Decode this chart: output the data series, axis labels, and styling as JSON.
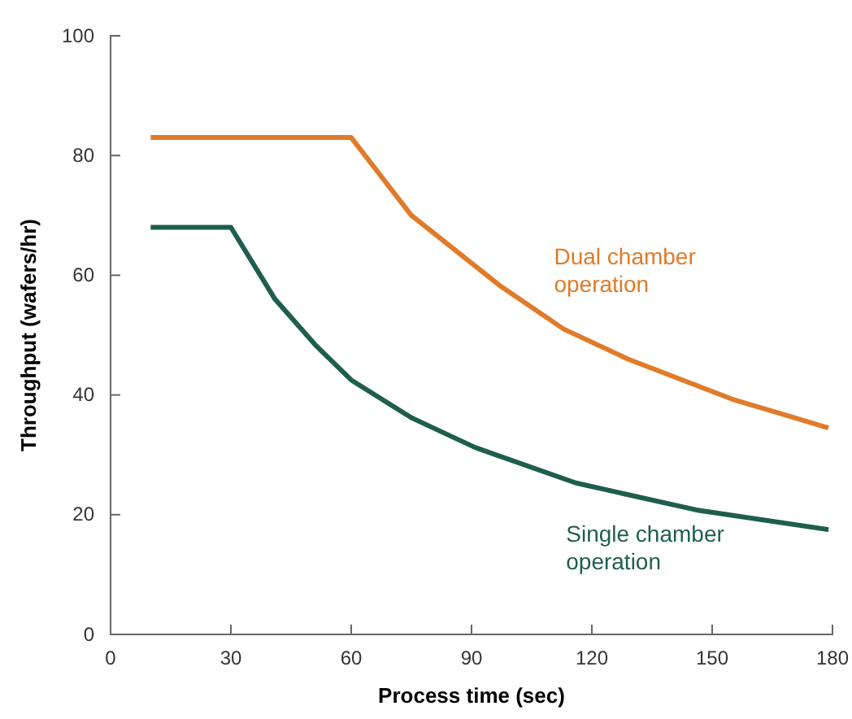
{
  "chart_data": {
    "type": "line",
    "xlabel": "Process time (sec)",
    "ylabel": "Throughput (wafers/hr)",
    "xlim": [
      0,
      180
    ],
    "ylim": [
      0,
      100
    ],
    "xticks": [
      0,
      30,
      60,
      90,
      120,
      150,
      180
    ],
    "yticks": [
      0,
      20,
      40,
      60,
      80,
      100
    ],
    "grid": false,
    "legend": false,
    "line_style": "solid",
    "marker": "none",
    "series": [
      {
        "name": "Dual chamber operation",
        "color": "#e07b2a",
        "x": [
          10,
          60,
          75,
          97,
          113,
          129,
          155,
          179
        ],
        "values": [
          83,
          83,
          70,
          58.3,
          51,
          46,
          39.3,
          34.5
        ]
      },
      {
        "name": "Single chamber operation",
        "color": "#1f5e4e",
        "x": [
          10,
          30,
          41,
          51,
          60,
          75,
          91,
          116,
          146,
          179
        ],
        "values": [
          68,
          68,
          56,
          48.4,
          42.5,
          36.2,
          31.2,
          25.3,
          20.8,
          17.5
        ]
      }
    ]
  }
}
